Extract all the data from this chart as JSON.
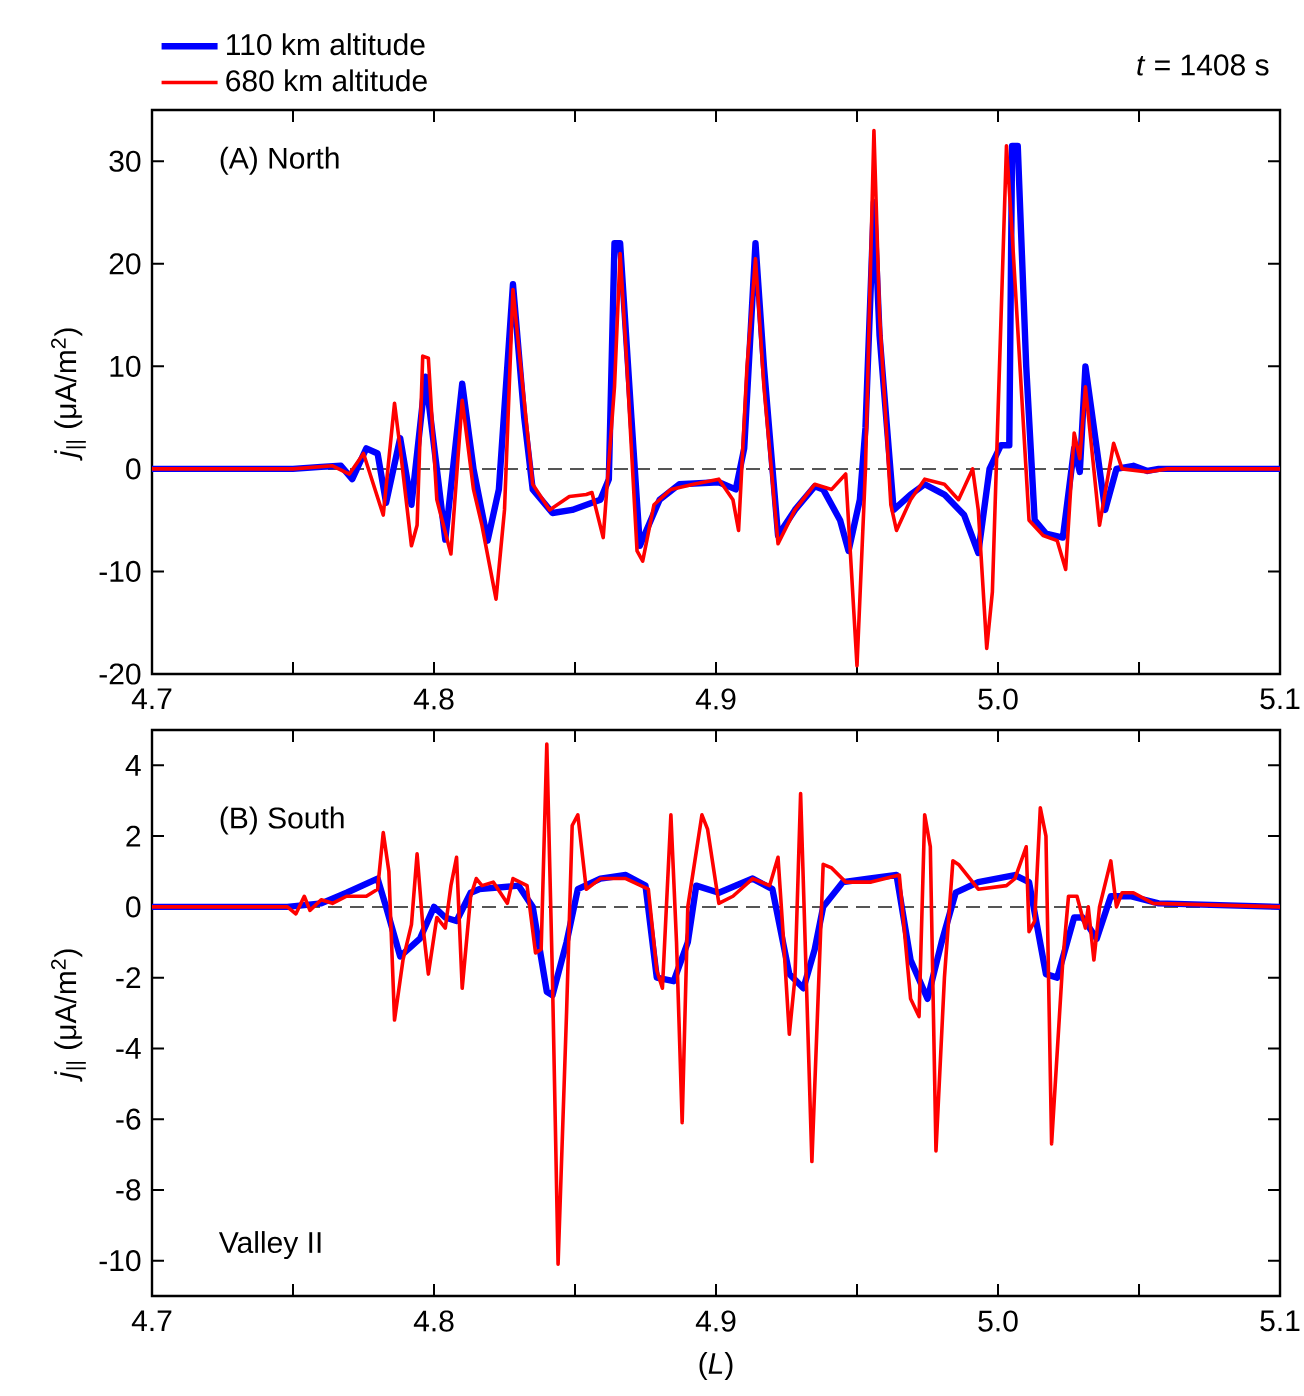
{
  "chart_data": [
    {
      "type": "line",
      "title": "(A)  North",
      "ylabel": "*j*$_{||}$ (μA/m$^{2}$)",
      "annotations": [
        "*t* = 1408 s"
      ],
      "legend": "top left",
      "xlim": [
        4.7,
        5.1
      ],
      "ylim": [
        -20,
        35
      ],
      "xticks": [
        4.7,
        {
          "value": 4.75,
          "label": null
        },
        4.8,
        {
          "value": 4.85,
          "label": null
        },
        4.9,
        {
          "value": 4.95,
          "label": null
        },
        {
          "value": 5,
          "label": "5.0"
        },
        {
          "value": 5.05,
          "label": null
        },
        5.1
      ],
      "yticks": [
        -20,
        -10,
        0,
        10,
        20,
        30
      ],
      "ref_lines": [
        {
          "axis": "y",
          "value": 0,
          "line_style": "dashed",
          "color": "#555555"
        }
      ],
      "series": [
        {
          "name": "110 km altitude",
          "color": "#0000ff",
          "x": [
            4.7,
            4.75,
            4.76,
            4.767,
            4.771,
            4.776,
            4.78,
            4.783,
            4.788,
            4.792,
            4.797,
            4.801,
            4.804,
            4.81,
            4.814,
            4.819,
            4.823,
            4.828,
            4.832,
            4.835,
            4.842,
            4.849,
            4.859,
            4.862,
            4.864,
            4.866,
            4.87,
            4.873,
            4.88,
            4.887,
            4.901,
            4.907,
            4.91,
            4.914,
            4.917,
            4.922,
            4.928,
            4.935,
            4.938,
            4.944,
            4.947,
            4.951,
            4.953,
            4.956,
            4.958,
            4.963,
            4.969,
            4.974,
            4.981,
            4.988,
            4.993,
            4.997,
            5.001,
            5.004,
            5.005,
            5.007,
            5.01,
            5.013,
            5.017,
            5.023,
            5.027,
            5.029,
            5.031,
            5.035,
            5.038,
            5.042,
            5.048,
            5.053,
            5.057,
            5.1
          ],
          "values": [
            0,
            0,
            0.2,
            0.3,
            -1,
            2,
            1.5,
            -3.3,
            3,
            -3.5,
            9,
            0,
            -6.9,
            8.3,
            0,
            -7,
            -2,
            18,
            5,
            -2,
            -4.3,
            -4,
            -3,
            -1,
            22,
            22,
            5,
            -7.5,
            -3,
            -1.5,
            -1.3,
            -2,
            2,
            22,
            10,
            -6.5,
            -4,
            -1.7,
            -2,
            -5,
            -8,
            -3,
            4,
            26,
            13,
            -4,
            -2.5,
            -1.5,
            -2.5,
            -4.5,
            -8.2,
            0,
            2.3,
            2.3,
            31.5,
            31.5,
            10,
            -5,
            -6.3,
            -6.7,
            2,
            -0.3,
            10,
            2,
            -4,
            0,
            0.3,
            -0.2,
            0,
            0
          ]
        },
        {
          "name": "680 km altitude",
          "color": "#ff0000",
          "x": [
            4.7,
            4.75,
            4.764,
            4.77,
            4.775,
            4.782,
            4.786,
            4.788,
            4.792,
            4.794,
            4.796,
            4.798,
            4.801,
            4.806,
            4.81,
            4.814,
            4.817,
            4.822,
            4.825,
            4.828,
            4.83,
            4.835,
            4.841,
            4.848,
            4.854,
            4.856,
            4.86,
            4.864,
            4.866,
            4.868,
            4.872,
            4.874,
            4.878,
            4.884,
            4.892,
            4.901,
            4.906,
            4.908,
            4.911,
            4.914,
            4.917,
            4.922,
            4.928,
            4.935,
            4.941,
            4.946,
            4.95,
            4.953,
            4.956,
            4.958,
            4.962,
            4.964,
            4.969,
            4.974,
            4.981,
            4.986,
            4.991,
            4.993,
            4.996,
            4.998,
            5.003,
            5.005,
            5.011,
            5.016,
            5.021,
            5.024,
            5.027,
            5.029,
            5.031,
            5.036,
            5.041,
            5.044,
            5.053,
            5.06,
            5.1
          ],
          "values": [
            0,
            0,
            0.3,
            -0.5,
            1.5,
            -4.5,
            6.4,
            2,
            -7.5,
            -5.5,
            11,
            10.8,
            -3,
            -8.3,
            6.7,
            -2,
            -5.5,
            -12.7,
            -4,
            17.5,
            12,
            -1.5,
            -4,
            -2.7,
            -2.5,
            -2.3,
            -6.7,
            8,
            21,
            12,
            -8,
            -9,
            -3.5,
            -2,
            -1.5,
            -1,
            -3,
            -6,
            10,
            20.5,
            8,
            -7.3,
            -4,
            -1.5,
            -2,
            -0.5,
            -19.2,
            0,
            33,
            15,
            -3.5,
            -6,
            -3,
            -1,
            -1.5,
            -3,
            0,
            -4,
            -17.5,
            -12,
            31.5,
            23,
            -5,
            -6.5,
            -7,
            -9.8,
            3.5,
            1,
            8,
            -5.5,
            2.5,
            0,
            -0.3,
            0,
            0
          ]
        }
      ]
    },
    {
      "type": "line",
      "title": "(B)  South",
      "xlabel": "(*L*)",
      "ylabel": "*j*$_{||}$ (μA/m$^{2}$)",
      "annotations": [
        "Valley II"
      ],
      "xlim": [
        4.7,
        5.1
      ],
      "ylim": [
        -11,
        5
      ],
      "xticks": [
        4.7,
        {
          "value": 4.75,
          "label": null
        },
        4.8,
        {
          "value": 4.85,
          "label": null
        },
        4.9,
        {
          "value": 4.95,
          "label": null
        },
        {
          "value": 5,
          "label": "5.0"
        },
        {
          "value": 5.05,
          "label": null
        },
        5.1
      ],
      "yticks": [
        -10,
        -8,
        -6,
        -4,
        -2,
        0,
        2,
        4
      ],
      "ref_lines": [
        {
          "axis": "y",
          "value": 0,
          "line_style": "dashed",
          "color": "#555555"
        }
      ],
      "series": [
        {
          "color": "#0000ff",
          "x": [
            4.7,
            4.748,
            4.76,
            4.769,
            4.78,
            4.783,
            4.788,
            4.795,
            4.8,
            4.804,
            4.808,
            4.813,
            4.816,
            4.83,
            4.835,
            4.84,
            4.842,
            4.847,
            4.851,
            4.859,
            4.868,
            4.875,
            4.879,
            4.885,
            4.89,
            4.893,
            4.901,
            4.913,
            4.92,
            4.926,
            4.931,
            4.935,
            4.938,
            4.945,
            4.954,
            4.964,
            4.969,
            4.975,
            4.98,
            4.985,
            4.993,
            5.006,
            5.011,
            5.017,
            5.021,
            5.027,
            5.03,
            5.035,
            5.04,
            5.047,
            5.057,
            5.1
          ],
          "values": [
            0,
            0,
            0.1,
            0.4,
            0.8,
            0,
            -1.4,
            -0.9,
            0,
            -0.3,
            -0.4,
            0.4,
            0.5,
            0.6,
            0,
            -2.4,
            -2.5,
            -1,
            0.5,
            0.8,
            0.9,
            0.6,
            -2,
            -2.1,
            -1,
            0.6,
            0.4,
            0.8,
            0.5,
            -1.9,
            -2.3,
            -1.2,
            0,
            0.7,
            0.8,
            0.9,
            -1.5,
            -2.6,
            -1,
            0.4,
            0.7,
            0.9,
            0.7,
            -1.9,
            -2,
            -0.3,
            -0.3,
            -0.9,
            0.3,
            0.3,
            0.1,
            0
          ]
        },
        {
          "color": "#ff0000",
          "x": [
            4.7,
            4.748,
            4.751,
            4.754,
            4.756,
            4.76,
            4.764,
            4.769,
            4.776,
            4.78,
            4.782,
            4.784,
            4.786,
            4.789,
            4.792,
            4.794,
            4.796,
            4.798,
            4.801,
            4.804,
            4.806,
            4.808,
            4.81,
            4.813,
            4.815,
            4.817,
            4.821,
            4.826,
            4.828,
            4.833,
            4.836,
            4.838,
            4.84,
            4.842,
            4.844,
            4.847,
            4.849,
            4.851,
            4.854,
            4.859,
            4.868,
            4.876,
            4.879,
            4.881,
            4.884,
            4.886,
            4.888,
            4.89,
            4.895,
            4.897,
            4.901,
            4.906,
            4.913,
            4.919,
            4.922,
            4.924,
            4.926,
            4.928,
            4.93,
            4.932,
            4.934,
            4.938,
            4.941,
            4.946,
            4.955,
            4.965,
            4.969,
            4.972,
            4.974,
            4.976,
            4.978,
            4.981,
            4.984,
            4.986,
            4.993,
            5.003,
            5.006,
            5.01,
            5.011,
            5.013,
            5.015,
            5.017,
            5.019,
            5.023,
            5.025,
            5.028,
            5.031,
            5.032,
            5.034,
            5.036,
            5.04,
            5.042,
            5.044,
            5.048,
            5.055,
            5.1
          ],
          "values": [
            0,
            0,
            -0.2,
            0.3,
            -0.1,
            0.2,
            0.1,
            0.3,
            0.3,
            0.5,
            2.1,
            1,
            -3.2,
            -1.5,
            -0.5,
            1.5,
            -0.5,
            -1.9,
            -0.3,
            -0.6,
            0.6,
            1.4,
            -2.3,
            0.3,
            0.8,
            0.6,
            0.7,
            0.1,
            0.8,
            0.6,
            -1.3,
            -1.2,
            4.6,
            -2,
            -10.1,
            -3,
            2.3,
            2.6,
            0.5,
            0.8,
            0.8,
            0.5,
            -1.8,
            -2.3,
            2.6,
            -1,
            -6.1,
            0,
            2.6,
            2.2,
            0.1,
            0.3,
            0.8,
            0.6,
            1.4,
            -1,
            -3.6,
            -2,
            3.2,
            -2,
            -7.2,
            1.2,
            1.1,
            0.7,
            0.7,
            0.9,
            -2.6,
            -3.1,
            2.6,
            1.7,
            -6.9,
            -2,
            1.3,
            1.2,
            0.5,
            0.6,
            0.8,
            1.7,
            -0.7,
            -0.4,
            2.8,
            2,
            -6.7,
            -1.5,
            0.3,
            0.3,
            -0.6,
            0,
            -1.5,
            0,
            1.3,
            0,
            0.4,
            0.4,
            0.1,
            0
          ]
        }
      ]
    }
  ]
}
